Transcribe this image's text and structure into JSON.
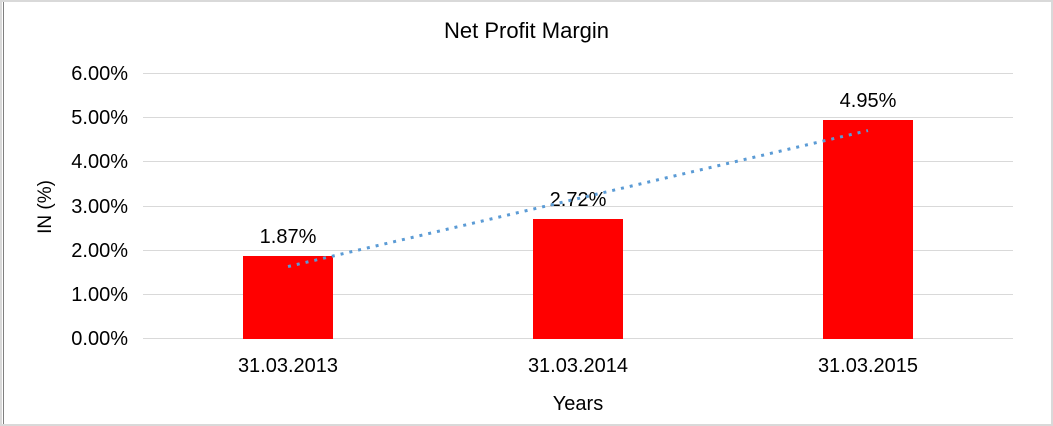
{
  "chart_data": {
    "type": "bar",
    "title": "Net Profit Margin",
    "xlabel": "Years",
    "ylabel": "IN (%)",
    "categories": [
      "31.03.2013",
      "31.03.2014",
      "31.03.2015"
    ],
    "values": [
      1.87,
      2.72,
      4.95
    ],
    "data_labels": [
      "1.87%",
      "2.72%",
      "4.95%"
    ],
    "ylim": [
      0,
      6
    ],
    "yticks": [
      {
        "value": 0,
        "label": "0.00%"
      },
      {
        "value": 1,
        "label": "1.00%"
      },
      {
        "value": 2,
        "label": "2.00%"
      },
      {
        "value": 3,
        "label": "3.00%"
      },
      {
        "value": 4,
        "label": "4.00%"
      },
      {
        "value": 5,
        "label": "5.00%"
      },
      {
        "value": 6,
        "label": "6.00%"
      }
    ],
    "grid": true,
    "legend": "none",
    "trendline": {
      "type": "linear",
      "style": "dotted"
    },
    "colors": {
      "bar": "#FF0000",
      "trendline": "#5B9BD5",
      "gridline": "#D9D9D9",
      "text": "#000000",
      "frame_border": "#D9D9D9"
    }
  }
}
